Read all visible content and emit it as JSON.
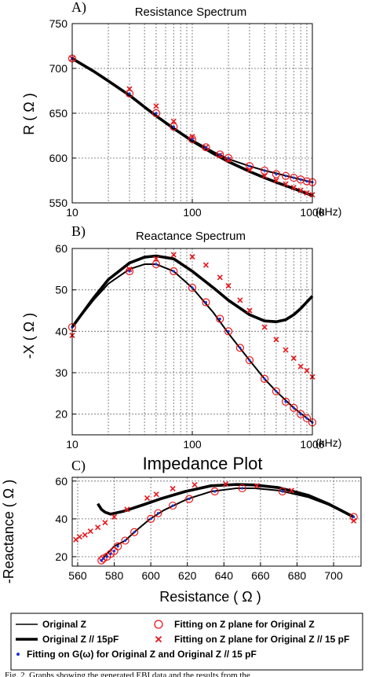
{
  "chart_data": [
    {
      "type": "line",
      "panel_label": "A)",
      "title": "Resistance Spectrum",
      "ylabel": "R ( Ω )",
      "x_unit": "(kHz)",
      "xscale": "log",
      "xlim": [
        10,
        1000
      ],
      "ylim": [
        550,
        750
      ],
      "xticks": [
        10,
        100,
        1000
      ],
      "xtick_labels": [
        "10",
        "100",
        "1000"
      ],
      "yticks": [
        550,
        600,
        650,
        700,
        750
      ],
      "ytick_labels": [
        "550",
        "600",
        "650",
        "700",
        "750"
      ],
      "grid": "dotted",
      "series": [
        {
          "name": "Original Z",
          "role": "thin_line",
          "x": [
            10,
            15,
            20,
            30,
            40,
            50,
            70,
            100,
            150,
            200,
            300,
            400,
            500,
            700,
            1000
          ],
          "y": [
            711,
            697,
            686,
            670,
            657,
            647,
            633,
            620,
            607,
            599,
            591,
            586,
            583,
            578,
            573
          ]
        },
        {
          "name": "Original Z // 15pF",
          "role": "thick_line",
          "x": [
            10,
            15,
            20,
            30,
            40,
            50,
            70,
            100,
            150,
            200,
            300,
            400,
            500,
            700,
            1000
          ],
          "y": [
            711,
            697,
            686,
            670,
            657,
            647,
            633,
            619,
            605,
            596,
            585,
            578,
            573,
            566,
            558
          ]
        },
        {
          "name": "Fitting on Z plane for Original Z",
          "role": "open_circles",
          "x": [
            10,
            30,
            50,
            70,
            100,
            130,
            170,
            200,
            300,
            400,
            500,
            600,
            700,
            800,
            900,
            1000
          ],
          "y": [
            711,
            672,
            650,
            635,
            621,
            612,
            604,
            600,
            591,
            586,
            582,
            580,
            578,
            576,
            574,
            573
          ]
        },
        {
          "name": "Fitting on Z plane for Original Z // 15 pF",
          "role": "x_markers",
          "x": [
            10,
            30,
            50,
            70,
            100,
            130,
            170,
            200,
            300,
            400,
            500,
            600,
            700,
            800,
            900,
            1000
          ],
          "y": [
            711,
            677,
            658,
            641,
            624,
            612,
            603,
            598,
            587,
            580,
            575,
            571,
            567,
            564,
            561,
            559
          ]
        },
        {
          "name": "Fitting on G(ω) for Original Z and Original Z // 15 pF",
          "role": "dots",
          "x": [
            10,
            30,
            50,
            70,
            100,
            130,
            170,
            200,
            300,
            400,
            500,
            600,
            700,
            800,
            900,
            1000
          ],
          "y": [
            711,
            672,
            650,
            635,
            621,
            612,
            604,
            600,
            591,
            586,
            582,
            580,
            578,
            576,
            574,
            573
          ]
        }
      ]
    },
    {
      "type": "line",
      "panel_label": "B)",
      "title": "Reactance Spectrum",
      "ylabel": "-X ( Ω )",
      "x_unit": "(kHz)",
      "xscale": "log",
      "xlim": [
        10,
        1000
      ],
      "ylim": [
        15,
        60
      ],
      "xticks": [
        10,
        100,
        1000
      ],
      "xtick_labels": [
        "10",
        "100",
        "1000"
      ],
      "yticks": [
        20,
        30,
        40,
        50,
        60
      ],
      "ytick_labels": [
        "20",
        "30",
        "40",
        "50",
        "60"
      ],
      "grid": "dotted",
      "series": [
        {
          "name": "Original Z",
          "role": "thin_line",
          "x": [
            10,
            15,
            20,
            30,
            40,
            50,
            70,
            100,
            150,
            200,
            300,
            400,
            500,
            700,
            1000
          ],
          "y": [
            41,
            47.5,
            51.5,
            55,
            56.2,
            56.2,
            54.5,
            50.5,
            44.5,
            39.5,
            33,
            28.5,
            25.5,
            21.5,
            18
          ]
        },
        {
          "name": "Original Z // 15pF",
          "role": "thick_line",
          "x": [
            10,
            15,
            20,
            30,
            40,
            50,
            70,
            100,
            150,
            200,
            300,
            400,
            500,
            600,
            700,
            800,
            1000
          ],
          "y": [
            41,
            48,
            52.5,
            56.5,
            57.9,
            58.2,
            57.5,
            54.5,
            50.5,
            47.5,
            44,
            42.5,
            42.3,
            42.8,
            44,
            45.5,
            48.5
          ]
        },
        {
          "name": "Fitting on Z plane for Original Z",
          "role": "open_circles",
          "x": [
            10,
            30,
            50,
            70,
            100,
            130,
            170,
            200,
            250,
            300,
            400,
            500,
            600,
            700,
            800,
            900,
            1000
          ],
          "y": [
            41,
            54.5,
            56.2,
            54.5,
            50.5,
            47,
            43,
            40,
            36,
            33,
            28.5,
            25.5,
            23,
            21.5,
            20,
            19,
            18
          ]
        },
        {
          "name": "Fitting on Z plane for Original Z // 15 pF",
          "role": "x_markers",
          "x": [
            10,
            30,
            50,
            70,
            100,
            130,
            170,
            200,
            250,
            300,
            400,
            500,
            600,
            700,
            800,
            900,
            1000
          ],
          "y": [
            39,
            55,
            57.5,
            58.5,
            58,
            56,
            53,
            51,
            47.5,
            45,
            41,
            38,
            35.5,
            33.5,
            31.5,
            30.5,
            29
          ]
        },
        {
          "name": "Fitting on G(ω) for Original Z and Original Z // 15 pF",
          "role": "dots",
          "x": [
            10,
            30,
            50,
            70,
            100,
            130,
            170,
            200,
            250,
            300,
            400,
            500,
            600,
            700,
            800,
            900,
            1000
          ],
          "y": [
            41,
            54.5,
            56.2,
            54.5,
            50.5,
            47,
            43,
            40,
            36,
            33,
            28.5,
            25.5,
            23,
            21.5,
            20,
            19,
            18
          ]
        }
      ]
    },
    {
      "type": "scatter",
      "panel_label": "C)",
      "title": "Impedance Plot",
      "xlabel": "Resistance ( Ω )",
      "ylabel": "-Reactance ( Ω )",
      "xlim": [
        557,
        715
      ],
      "ylim": [
        15,
        62
      ],
      "xticks": [
        560,
        580,
        600,
        620,
        640,
        660,
        680,
        700
      ],
      "xtick_labels": [
        "560",
        "580",
        "600",
        "620",
        "640",
        "660",
        "680",
        "700"
      ],
      "yticks": [
        20,
        40,
        60
      ],
      "ytick_labels": [
        "20",
        "40",
        "60"
      ],
      "grid": "dotted",
      "series": [
        {
          "name": "Original Z",
          "role": "thin_line",
          "x": [
            573,
            576,
            580,
            586,
            591,
            599,
            607,
            620,
            633,
            647,
            657,
            670,
            686,
            697,
            711
          ],
          "y": [
            18,
            21.5,
            25.5,
            28.5,
            33,
            39.5,
            44.5,
            50.5,
            54.5,
            56.2,
            56.2,
            55,
            51.5,
            47.5,
            41
          ]
        },
        {
          "name": "Original Z // 15pF",
          "role": "thick_line",
          "x": [
            571,
            573,
            575,
            578,
            585,
            596,
            605,
            619,
            633,
            647,
            657,
            670,
            686,
            697,
            711
          ],
          "y": [
            48,
            45,
            43.5,
            42.5,
            44,
            47.5,
            50.5,
            54.5,
            57.5,
            58.2,
            57.9,
            56.5,
            52.5,
            48,
            41
          ]
        },
        {
          "name": "Fitting on Z plane for Original Z",
          "role": "open_circles",
          "x": [
            573,
            574,
            576,
            578,
            580,
            582,
            586,
            591,
            600,
            604,
            612,
            621,
            635,
            650,
            672,
            711
          ],
          "y": [
            18,
            19,
            20,
            21.5,
            23,
            25.5,
            28.5,
            33,
            40,
            43,
            47,
            50.5,
            54.5,
            56.2,
            54.5,
            41
          ]
        },
        {
          "name": "Fitting on Z plane for Original Z // 15 pF",
          "role": "x_markers",
          "x": [
            559,
            561,
            564,
            567,
            571,
            575,
            580,
            587,
            598,
            603,
            612,
            624,
            641,
            658,
            677,
            711
          ],
          "y": [
            29,
            30.5,
            31.5,
            33.5,
            35.5,
            38,
            41,
            45,
            51,
            53,
            56,
            58,
            58.5,
            57.5,
            55,
            39
          ]
        },
        {
          "name": "Fitting on G(ω) for Original Z and Original Z // 15 pF",
          "role": "dots",
          "x": [
            573,
            574,
            576,
            578,
            580,
            582,
            586,
            591,
            600,
            604,
            612,
            621,
            635,
            650,
            672,
            711
          ],
          "y": [
            18,
            19,
            20,
            21.5,
            23,
            25.5,
            28.5,
            33,
            40,
            43,
            47,
            50.5,
            54.5,
            56.2,
            54.5,
            41
          ]
        }
      ]
    }
  ],
  "legend": [
    {
      "role": "thin_line",
      "label": "Original Z"
    },
    {
      "role": "open_circles",
      "label": "Fitting on Z plane for Original Z"
    },
    {
      "role": "thick_line",
      "label": "Original Z // 15pF"
    },
    {
      "role": "x_markers",
      "label": "Fitting on Z plane for Original Z // 15 pF"
    },
    {
      "role": "dots",
      "label": "Fitting on G(ω)  for Original Z and Original Z // 15 pF"
    }
  ],
  "caption": "Fig. 2. Graphs showing the generated EBI data and the results from the",
  "colors": {
    "line": "#000000",
    "fit_markers": "#e8161b",
    "dots": "#1a2fd6",
    "axis": "#000000",
    "grid": "#666666"
  }
}
